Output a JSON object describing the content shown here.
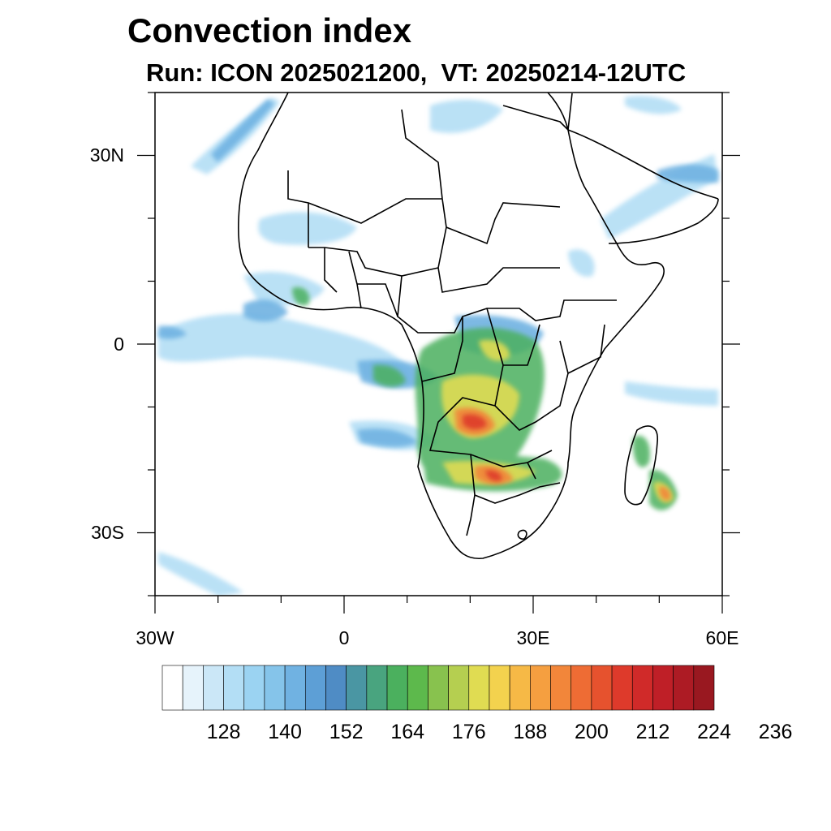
{
  "title": "Convection index",
  "subtitle": "Run: ICON 2025021200,  VT: 20250214-12UTC",
  "map": {
    "lon_range": [
      -30,
      60
    ],
    "lat_range": [
      -40,
      40
    ],
    "lon_ticks": [
      {
        "lon": -30,
        "label": "30W"
      },
      {
        "lon": 0,
        "label": "0"
      },
      {
        "lon": 30,
        "label": "30E"
      },
      {
        "lon": 60,
        "label": "60E"
      }
    ],
    "lat_ticks": [
      {
        "lat": 30,
        "label": "30N"
      },
      {
        "lat": 0,
        "label": "0"
      },
      {
        "lat": -30,
        "label": "30S"
      }
    ],
    "coastline_color": "#000000",
    "region": "Africa"
  },
  "colorbar": {
    "colors": [
      "#ffffff",
      "#e6f3fb",
      "#cbe7f7",
      "#b3def5",
      "#9bd3f2",
      "#85c4ea",
      "#70b2e2",
      "#5d9fd6",
      "#4f8cc5",
      "#4a96a3",
      "#49a47f",
      "#4bb05e",
      "#5db94c",
      "#88c24e",
      "#b5cf50",
      "#e0dc52",
      "#f3d24e",
      "#f6b946",
      "#f59f40",
      "#f2863a",
      "#ee6c34",
      "#e6522e",
      "#de3a2b",
      "#d02a29",
      "#bf1f27",
      "#ad1b24",
      "#991820"
    ],
    "labels": [
      "128",
      "140",
      "152",
      "164",
      "176",
      "188",
      "200",
      "212",
      "224",
      "236"
    ]
  }
}
